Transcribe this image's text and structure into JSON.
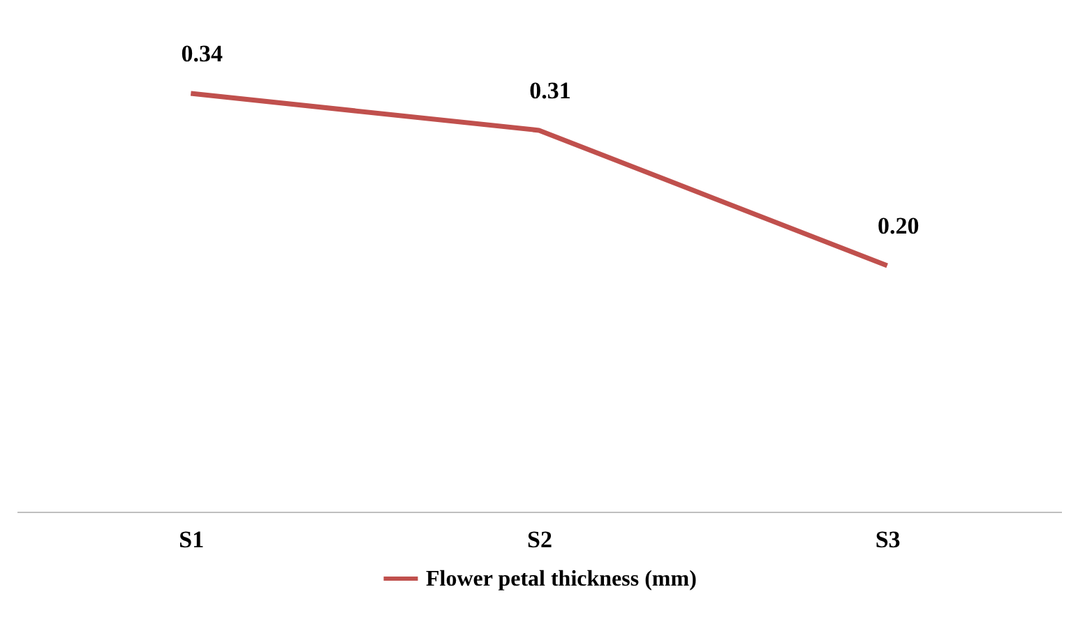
{
  "chart_data": {
    "type": "line",
    "categories": [
      "S1",
      "S2",
      "S3"
    ],
    "series": [
      {
        "name": "Flower petal thickness (mm)",
        "color": "#c0504d",
        "values": [
          0.34,
          0.31,
          0.2
        ],
        "value_labels": [
          "0.34",
          "0.31",
          "0.20"
        ]
      }
    ],
    "tick_labels": "x",
    "legend": "bottom",
    "marker": "none",
    "line_style": "solid"
  }
}
